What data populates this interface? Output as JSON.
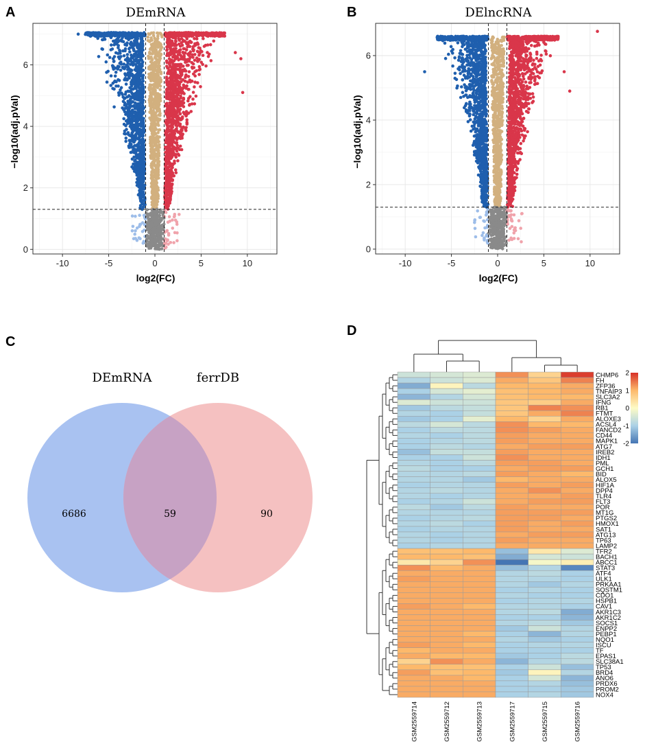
{
  "panels": {
    "a": {
      "label": "A"
    },
    "b": {
      "label": "B"
    },
    "c": {
      "label": "C"
    },
    "d": {
      "label": "D"
    }
  },
  "chart_data": [
    {
      "type": "scatter",
      "id": "volcano-mrna",
      "title": "DEmRNA",
      "xlabel": "log2(FC)",
      "ylabel": "−log10(adj.pVal)",
      "xlim": [
        -13.2,
        13.2
      ],
      "ylim": [
        -0.15,
        7.35
      ],
      "xticks": [
        -10,
        -5,
        0,
        5,
        10
      ],
      "yticks": [
        0,
        2,
        4,
        6
      ],
      "fc_threshold": 1,
      "p_threshold": 1.3,
      "ymax": 7.05,
      "spread": 8.0,
      "seed": 7,
      "outliers": [
        {
          "x": 9.5,
          "y": 5.1,
          "group": "up"
        },
        {
          "x": 9.3,
          "y": 6.2,
          "group": "up"
        },
        {
          "x": 8.7,
          "y": 6.4,
          "group": "up"
        },
        {
          "x": -8.3,
          "y": 7.0,
          "group": "down"
        }
      ],
      "grid": true
    },
    {
      "type": "scatter",
      "id": "volcano-lncrna",
      "title": "DElncRNA",
      "xlabel": "log2(FC)",
      "ylabel": "−log10(adj.pVal)",
      "xlim": [
        -13.2,
        13.2
      ],
      "ylim": [
        -0.15,
        7.0
      ],
      "xticks": [
        -10,
        -5,
        0,
        5,
        10
      ],
      "yticks": [
        0,
        2,
        4,
        6
      ],
      "fc_threshold": 1,
      "p_threshold": 1.3,
      "ymax": 6.6,
      "spread": 7.0,
      "seed": 23,
      "outliers": [
        {
          "x": 10.8,
          "y": 6.75,
          "group": "up"
        },
        {
          "x": 7.8,
          "y": 4.9,
          "group": "up"
        },
        {
          "x": 7.2,
          "y": 5.5,
          "group": "up"
        },
        {
          "x": -7.9,
          "y": 5.5,
          "group": "down"
        }
      ],
      "grid": true
    },
    {
      "type": "venn",
      "id": "venn",
      "sets": [
        "DEmRNA",
        "ferrDB"
      ],
      "only_a": 6686,
      "both": 59,
      "only_b": 90,
      "colors": {
        "a": "#a9c2f1",
        "b": "#f4b8b8",
        "overlap": "#c7a2c4"
      }
    },
    {
      "type": "heatmap",
      "id": "ferroptosis-heatmap",
      "samples": [
        "GSM2559714",
        "GSM2559712",
        "GSM2559713",
        "GSM2559717",
        "GSM2559715",
        "GSM2559716"
      ],
      "genes": [
        "CHMP6",
        "FH",
        "ZFP36",
        "TNFAIP3",
        "SLC3A2",
        "IFNG",
        "RB1",
        "FTMT",
        "ALOXE3",
        "ACSL4",
        "FANCD2",
        "CD44",
        "MAPK1",
        "ATG7",
        "IREB2",
        "IDH1",
        "PML",
        "GCH1",
        "BID",
        "ALOX5",
        "HIF1A",
        "DPP4",
        "TLR4",
        "FLT3",
        "POR",
        "MT1G",
        "PTGS2",
        "HMOX1",
        "SAT1",
        "ATG13",
        "TP63",
        "LAMP2",
        "TFR2",
        "BACH1",
        "ABCC1",
        "STAT3",
        "ATF4",
        "ULK1",
        "PRKAA1",
        "SQSTM1",
        "CDO1",
        "HSPB1",
        "CAV1",
        "AKR1C3",
        "AKR1C2",
        "SOCS1",
        "ENPP2",
        "PEBP1",
        "NQO1",
        "ISCU",
        "TF",
        "EPAS1",
        "SLC38A1",
        "TP53",
        "BRD4",
        "ANO6",
        "PRDX6",
        "PROM2",
        "NOX4"
      ],
      "values": [
        [
          -0.6,
          -0.5,
          -0.4,
          1.3,
          0.6,
          1.9
        ],
        [
          -0.9,
          -0.6,
          -0.4,
          1.1,
          0.8,
          1.4
        ],
        [
          -1.4,
          0.1,
          -0.8,
          1.0,
          1.0,
          1.1
        ],
        [
          -1.0,
          -0.5,
          -0.3,
          0.9,
          1.0,
          1.1
        ],
        [
          -1.3,
          -0.9,
          -0.5,
          0.9,
          1.0,
          1.0
        ],
        [
          -0.4,
          -0.6,
          -0.6,
          0.8,
          0.7,
          1.1
        ],
        [
          -1.1,
          -0.8,
          -0.7,
          0.8,
          1.4,
          1.3
        ],
        [
          -0.9,
          -1.0,
          -0.7,
          0.8,
          1.1,
          1.4
        ],
        [
          -1.1,
          -1.0,
          -0.3,
          1.0,
          0.6,
          1.1
        ],
        [
          -0.8,
          -0.5,
          -0.8,
          1.3,
          1.0,
          1.0
        ],
        [
          -1.0,
          -0.8,
          -0.8,
          1.3,
          1.2,
          1.1
        ],
        [
          -0.9,
          -1.0,
          -0.8,
          1.2,
          1.1,
          1.1
        ],
        [
          -1.0,
          -0.9,
          -0.8,
          1.2,
          1.1,
          1.1
        ],
        [
          -1.0,
          -0.8,
          -0.9,
          1.1,
          1.2,
          1.2
        ],
        [
          -1.2,
          -0.7,
          -0.7,
          1.2,
          1.1,
          1.1
        ],
        [
          -1.0,
          -1.0,
          -0.6,
          1.3,
          1.1,
          1.1
        ],
        [
          -0.9,
          -1.0,
          -0.8,
          1.2,
          1.2,
          1.1
        ],
        [
          -0.8,
          -1.0,
          -1.0,
          1.1,
          1.2,
          1.2
        ],
        [
          -0.9,
          -0.9,
          -0.8,
          1.2,
          1.1,
          1.0
        ],
        [
          -0.9,
          -0.9,
          -1.1,
          1.0,
          1.1,
          1.1
        ],
        [
          -1.0,
          -0.9,
          -0.9,
          1.2,
          1.1,
          1.2
        ],
        [
          -0.9,
          -0.8,
          -0.9,
          1.1,
          1.3,
          1.1
        ],
        [
          -0.9,
          -1.0,
          -0.9,
          1.1,
          1.1,
          1.2
        ],
        [
          -1.0,
          -0.9,
          -0.6,
          1.1,
          1.2,
          1.2
        ],
        [
          -0.8,
          -1.1,
          -0.8,
          1.2,
          1.1,
          1.1
        ],
        [
          -0.9,
          -0.9,
          -0.9,
          1.2,
          1.2,
          1.2
        ],
        [
          -1.0,
          -0.9,
          -0.8,
          1.2,
          1.2,
          1.1
        ],
        [
          -0.9,
          -0.8,
          -1.0,
          1.2,
          1.1,
          1.2
        ],
        [
          -1.0,
          -0.9,
          -0.9,
          1.2,
          1.1,
          1.1
        ],
        [
          -0.9,
          -1.0,
          -0.9,
          1.1,
          1.2,
          1.2
        ],
        [
          -0.9,
          -1.0,
          -0.9,
          1.2,
          1.1,
          1.1
        ],
        [
          -1.0,
          -0.9,
          -0.9,
          1.1,
          1.1,
          1.1
        ],
        [
          0.9,
          0.9,
          1.0,
          -1.2,
          0.3,
          -0.4
        ],
        [
          1.0,
          1.0,
          0.9,
          -1.4,
          -0.5,
          -0.6
        ],
        [
          0.3,
          0.6,
          1.3,
          -2.0,
          -0.1,
          0.2
        ],
        [
          1.3,
          1.0,
          1.1,
          -1.2,
          -0.9,
          -1.8
        ],
        [
          1.1,
          1.1,
          1.1,
          -0.9,
          -0.8,
          -1.0
        ],
        [
          1.2,
          1.1,
          1.1,
          -0.9,
          -0.9,
          -1.0
        ],
        [
          1.1,
          1.1,
          1.1,
          -0.9,
          -1.1,
          -0.9
        ],
        [
          1.1,
          1.1,
          1.1,
          -1.0,
          -0.9,
          -1.0
        ],
        [
          1.1,
          1.1,
          1.1,
          -0.9,
          -1.0,
          -1.0
        ],
        [
          1.1,
          1.1,
          1.1,
          -1.0,
          -0.9,
          -0.9
        ],
        [
          1.2,
          1.1,
          1.0,
          -0.9,
          -0.9,
          -1.0
        ],
        [
          1.1,
          1.1,
          1.1,
          -0.9,
          -0.8,
          -1.4
        ],
        [
          1.1,
          1.1,
          1.1,
          -1.0,
          -1.0,
          -1.3
        ],
        [
          1.1,
          1.1,
          1.1,
          -0.9,
          -0.8,
          -1.1
        ],
        [
          1.1,
          1.1,
          1.1,
          -1.1,
          -0.6,
          -0.9
        ],
        [
          1.1,
          1.1,
          1.0,
          -1.0,
          -1.3,
          -0.9
        ],
        [
          1.1,
          1.1,
          1.1,
          -0.9,
          -1.1,
          -1.0
        ],
        [
          1.2,
          1.1,
          1.0,
          -1.0,
          -0.9,
          -0.9
        ],
        [
          1.0,
          1.1,
          1.1,
          -1.0,
          -1.0,
          -1.0
        ],
        [
          1.1,
          1.0,
          1.0,
          -1.1,
          -1.0,
          -0.8
        ],
        [
          0.6,
          1.3,
          1.1,
          -1.3,
          -0.9,
          -0.8
        ],
        [
          1.0,
          0.9,
          0.9,
          -1.0,
          -0.6,
          -1.2
        ],
        [
          1.2,
          0.9,
          1.0,
          -1.1,
          0.1,
          -0.9
        ],
        [
          1.1,
          1.1,
          1.0,
          -1.0,
          -0.5,
          -1.3
        ],
        [
          1.1,
          1.1,
          1.1,
          -1.0,
          -0.9,
          -1.2
        ],
        [
          1.1,
          1.1,
          1.1,
          -1.0,
          -1.0,
          -1.1
        ],
        [
          1.1,
          1.1,
          1.1,
          -1.0,
          -0.9,
          -1.1
        ]
      ],
      "legend_ticks": [
        2,
        1,
        0,
        -1,
        -2
      ],
      "legend_range": [
        -2,
        2
      ]
    }
  ]
}
